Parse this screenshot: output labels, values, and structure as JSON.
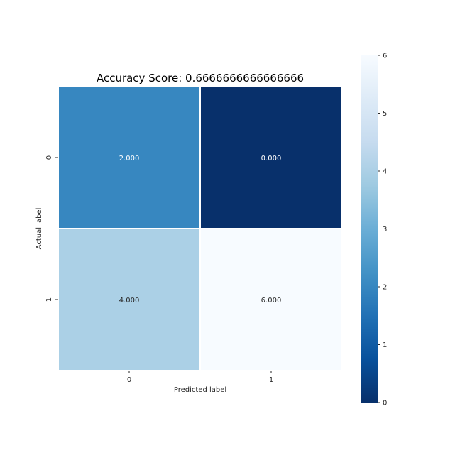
{
  "chart_data": {
    "type": "heatmap",
    "title": "Accuracy Score: 0.6666666666666666",
    "xlabel": "Predicted label",
    "ylabel": "Actual label",
    "x_categories": [
      "0",
      "1"
    ],
    "y_categories": [
      "0",
      "1"
    ],
    "values": [
      [
        2,
        0
      ],
      [
        4,
        6
      ]
    ],
    "cell_labels": [
      [
        "2.000",
        "0.000"
      ],
      [
        "4.000",
        "6.000"
      ]
    ],
    "colormap": "Blues_r",
    "colorbar": {
      "range": [
        0,
        6
      ],
      "ticks": [
        "0",
        "1",
        "2",
        "3",
        "4",
        "5",
        "6"
      ]
    },
    "colors": {
      "low": "#08306b",
      "high": "#f7fbff"
    }
  }
}
